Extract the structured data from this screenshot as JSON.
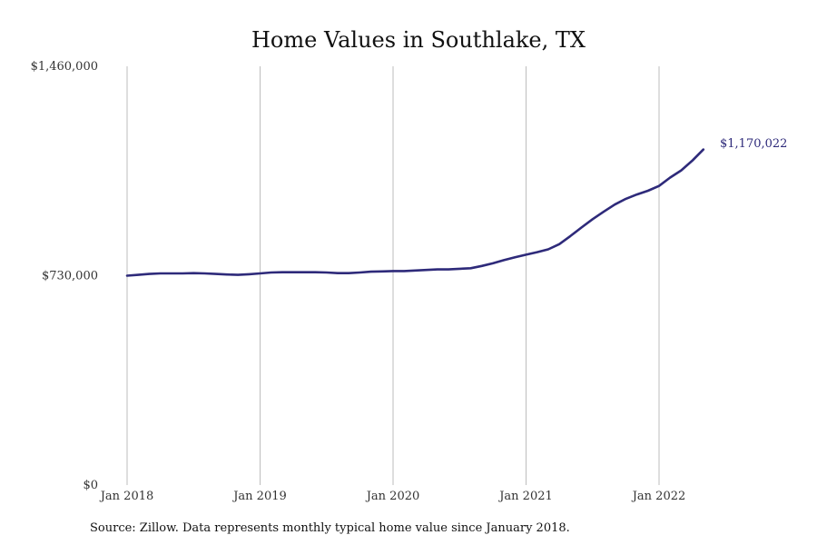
{
  "chart_data": {
    "type": "line",
    "title": "Home Values in Southlake, TX",
    "xlabel": "",
    "ylabel": "",
    "ylim": [
      0,
      1460000
    ],
    "y_ticks": [
      "$0",
      "$730,000",
      "$1,460,000"
    ],
    "y_tick_values": [
      0,
      730000,
      1460000
    ],
    "x_ticks": [
      "Jan 2018",
      "Jan 2019",
      "Jan 2020",
      "Jan 2021",
      "Jan 2022"
    ],
    "x_tick_values": [
      "2018-01",
      "2019-01",
      "2020-01",
      "2021-01",
      "2022-01"
    ],
    "grid": "vertical",
    "series": [
      {
        "color": "#2e2a7a",
        "x": [
          "2018-01",
          "2018-02",
          "2018-03",
          "2018-04",
          "2018-05",
          "2018-06",
          "2018-07",
          "2018-08",
          "2018-09",
          "2018-10",
          "2018-11",
          "2018-12",
          "2019-01",
          "2019-02",
          "2019-03",
          "2019-04",
          "2019-05",
          "2019-06",
          "2019-07",
          "2019-08",
          "2019-09",
          "2019-10",
          "2019-11",
          "2019-12",
          "2020-01",
          "2020-02",
          "2020-03",
          "2020-04",
          "2020-05",
          "2020-06",
          "2020-07",
          "2020-08",
          "2020-09",
          "2020-10",
          "2020-11",
          "2020-12",
          "2021-01",
          "2021-02",
          "2021-03",
          "2021-04",
          "2021-05",
          "2021-06",
          "2021-07",
          "2021-08",
          "2021-09",
          "2021-10",
          "2021-11",
          "2021-12",
          "2022-01",
          "2022-02",
          "2022-03",
          "2022-04",
          "2022-05"
        ],
        "values": [
          730000,
          733000,
          736000,
          738000,
          738000,
          738000,
          739000,
          738000,
          736000,
          734000,
          733000,
          735000,
          738000,
          741000,
          742000,
          742000,
          742000,
          742000,
          741000,
          739000,
          739000,
          741000,
          744000,
          745000,
          746000,
          746000,
          748000,
          750000,
          752000,
          752000,
          754000,
          756000,
          764000,
          773000,
          784000,
          794000,
          803000,
          812000,
          822000,
          840000,
          868000,
          898000,
          927000,
          953000,
          978000,
          998000,
          1013000,
          1026000,
          1043000,
          1072000,
          1097000,
          1131000,
          1170022
        ]
      }
    ],
    "end_label": "$1,170,022",
    "source_note": "Source: Zillow. Data represents monthly typical home value since January 2018."
  }
}
